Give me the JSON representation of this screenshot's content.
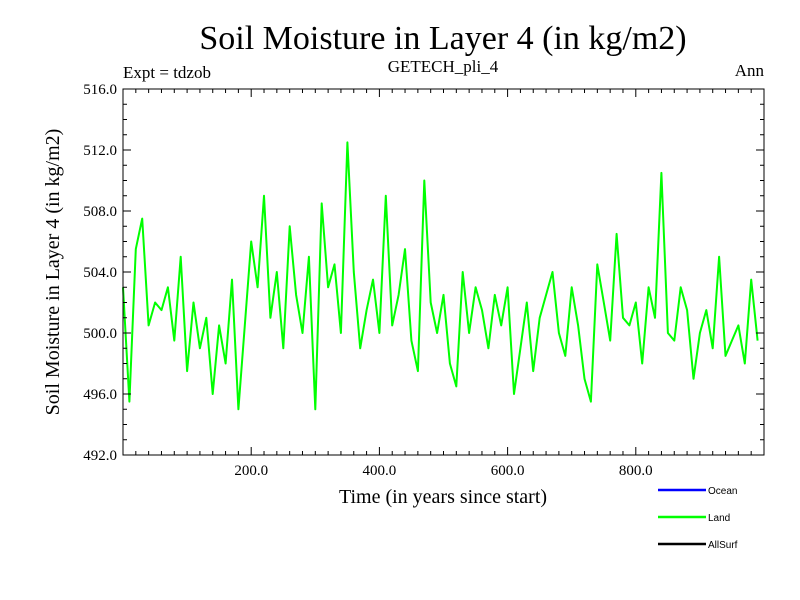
{
  "title": "Soil Moisture in Layer 4 (in kg/m2)",
  "subtitle": "GETECH_pli_4",
  "left_note": "Expt = tdzob",
  "right_note": "Ann",
  "chart_data": {
    "type": "line",
    "title": "Soil Moisture in Layer 4 (in kg/m2)",
    "subtitle": "GETECH_pli_4",
    "xlabel": "Time (in years since start)",
    "ylabel": "Soil Moisture in Layer 4 (in kg/m2)",
    "xlim": [
      0,
      1000
    ],
    "ylim": [
      492.0,
      516.0
    ],
    "xticks": [
      200,
      400,
      600,
      800
    ],
    "xtick_labels": [
      "200.0",
      "400.0",
      "600.0",
      "800.0"
    ],
    "yticks": [
      492,
      496,
      500,
      504,
      508,
      512,
      516
    ],
    "ytick_labels": [
      "492.0",
      "496.0",
      "500.0",
      "504.0",
      "508.0",
      "512.0",
      "516.0"
    ],
    "legend": [
      {
        "name": "Ocean",
        "color": "#0000ff"
      },
      {
        "name": "Land",
        "color": "#00ff00"
      },
      {
        "name": "AllSurf",
        "color": "#000000"
      }
    ],
    "series": [
      {
        "name": "Land",
        "color": "#00ff00",
        "x_start": 0,
        "x_step": 10,
        "values": [
          503.0,
          495.5,
          505.5,
          507.5,
          500.5,
          502.0,
          501.5,
          503.0,
          499.5,
          505.0,
          497.5,
          502.0,
          499.0,
          501.0,
          496.0,
          500.5,
          498.0,
          503.5,
          495.0,
          500.5,
          506.0,
          503.0,
          509.0,
          501.0,
          504.0,
          499.0,
          507.0,
          502.5,
          500.0,
          505.0,
          495.0,
          508.5,
          503.0,
          504.5,
          500.0,
          512.5,
          504.0,
          499.0,
          501.5,
          503.5,
          500.0,
          509.0,
          500.5,
          502.5,
          505.5,
          499.5,
          497.5,
          510.0,
          502.0,
          500.0,
          502.5,
          498.0,
          496.5,
          504.0,
          500.0,
          503.0,
          501.5,
          499.0,
          502.5,
          500.5,
          503.0,
          496.0,
          499.0,
          502.0,
          497.5,
          501.0,
          502.5,
          504.0,
          500.0,
          498.5,
          503.0,
          500.5,
          497.0,
          495.5,
          504.5,
          502.0,
          499.5,
          506.5,
          501.0,
          500.5,
          502.0,
          498.0,
          503.0,
          501.0,
          510.5,
          500.0,
          499.5,
          503.0,
          501.5,
          497.0,
          500.0,
          501.5,
          499.0,
          505.0,
          498.5,
          499.5,
          500.5,
          498.0,
          503.5,
          499.5
        ]
      }
    ]
  }
}
